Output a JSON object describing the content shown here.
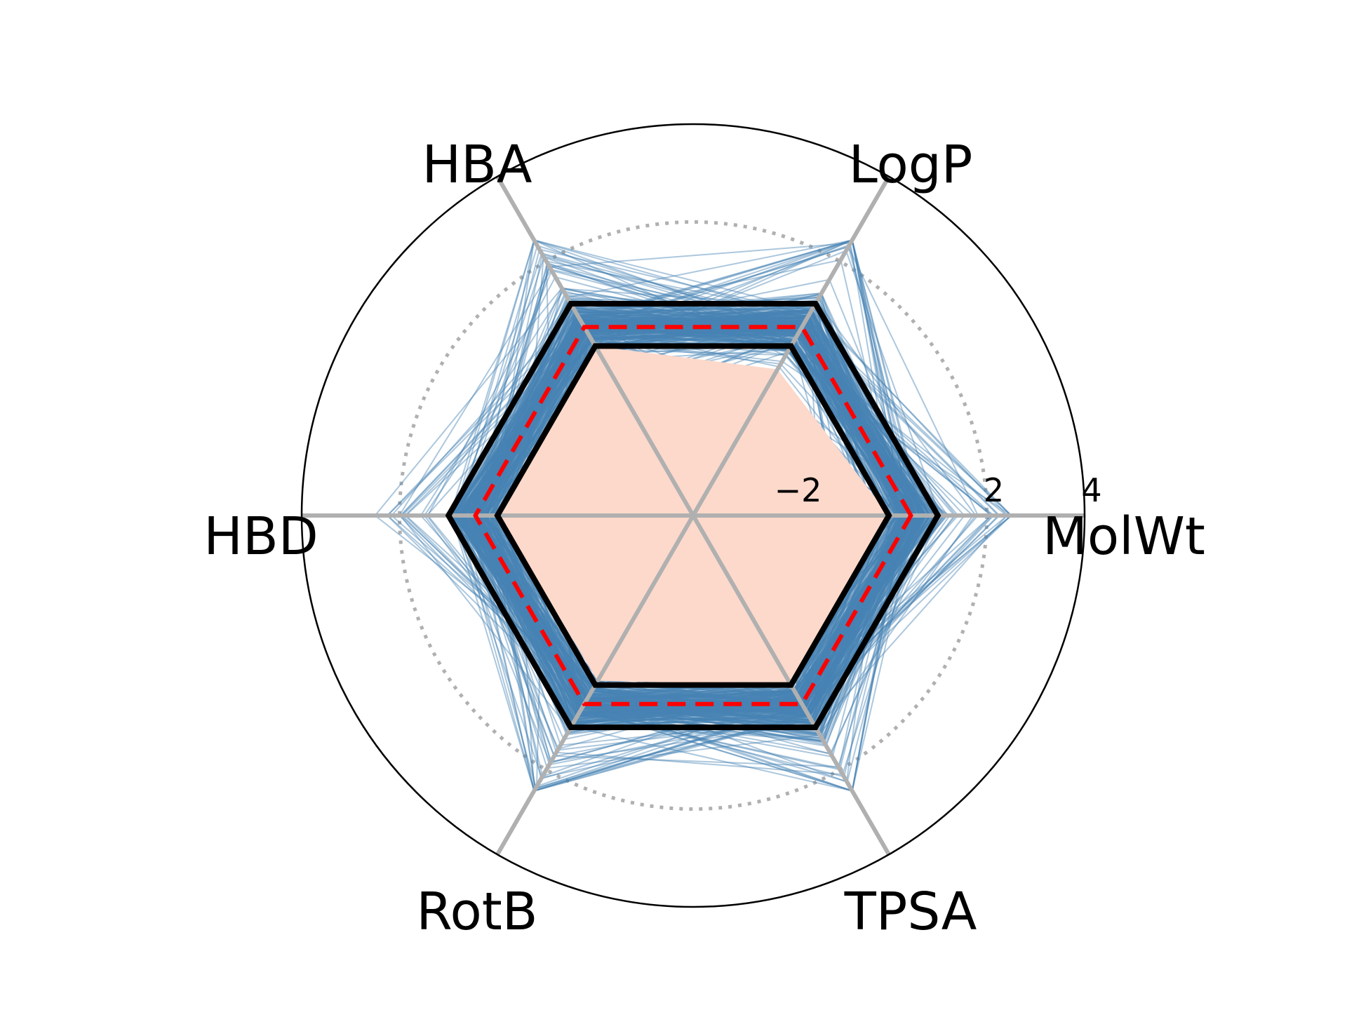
{
  "chart_data": {
    "type": "radar",
    "axes": [
      "MolWt",
      "LogP",
      "HBA",
      "HBD",
      "RotB",
      "TPSA"
    ],
    "radial_ticks": [
      "−2",
      "2",
      "4"
    ],
    "radial_tick_values": [
      -2,
      2,
      4
    ],
    "rlim": [
      -4,
      4
    ],
    "grid_circles": [
      -2,
      0,
      2
    ],
    "grid_style": "dotted",
    "series": [
      {
        "role": "individual_molecules",
        "count": 300,
        "style": "thin steelblue lines",
        "typical_range": [
          -0.9,
          2.4
        ]
      },
      {
        "role": "upper_bound",
        "values": [
          1.0,
          1.0,
          1.0,
          1.0,
          1.0,
          1.0
        ],
        "style": "thick black solid"
      },
      {
        "role": "lower_bound",
        "values": [
          0.0,
          0.0,
          0.0,
          0.0,
          0.0,
          0.0
        ],
        "style": "thick black solid"
      },
      {
        "role": "mean",
        "values": [
          0.45,
          0.45,
          0.45,
          0.45,
          0.45,
          0.45
        ],
        "style": "red dashed"
      },
      {
        "role": "reference_area",
        "values": [
          0.0,
          -0.55,
          0.0,
          0.0,
          -0.1,
          0.0
        ],
        "style": "filled"
      }
    ],
    "colors": {
      "fill": "#fcd9cb",
      "molecules": "#4682b4",
      "bounds": "#000000",
      "mean": "#ff0000",
      "spokes": "#b0b0b0",
      "grid": "#b0b0b0",
      "frame": "#000000"
    }
  }
}
